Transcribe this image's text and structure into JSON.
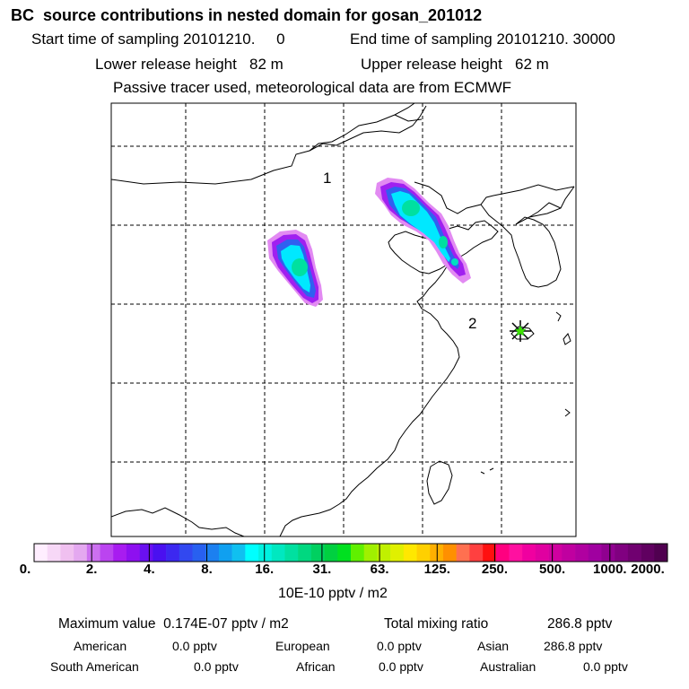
{
  "header": {
    "title": "BC  source contributions in nested domain for gosan_201012",
    "start": "Start time of sampling 20101210.     0",
    "end": "End time of sampling 20101210. 30000",
    "lower": "Lower release height   82 m",
    "upper": "Upper release height   62 m",
    "note": "Passive tracer used, meteorological data are from ECMWF"
  },
  "map": {
    "labels": [
      {
        "text": "2"
      },
      {
        "text": "1"
      }
    ],
    "receptor_marker": "star-asterisk-icon"
  },
  "colorbar": {
    "ticks": [
      "0.",
      "2.",
      "4.",
      "8.",
      "16.",
      "31.",
      "63.",
      "125.",
      "250.",
      "500.",
      "1000.",
      "2000."
    ],
    "units": "10E-10 pptv / m2",
    "colors": [
      "#ffeeff",
      "#f7d8f7",
      "#f0c0f0",
      "#e4a8f0",
      "#cc70f0",
      "#bb44f0",
      "#a81cf0",
      "#8e10f0",
      "#6a10f0",
      "#4a10f0",
      "#3c28f0",
      "#3248f0",
      "#2860f0",
      "#1c80f0",
      "#10a0f0",
      "#10c0f0",
      "#00ffff",
      "#00f2e0",
      "#00e8c0",
      "#00e0a0",
      "#00d880",
      "#00d060",
      "#00d040",
      "#00e020",
      "#60f000",
      "#a0f000",
      "#c0f000",
      "#e0f000",
      "#ffe800",
      "#ffd000",
      "#ffb000",
      "#ff9000",
      "#ff7050",
      "#ff4040",
      "#ff1010",
      "#ff0080",
      "#ff10a0",
      "#f000a0",
      "#e000a0",
      "#d000a0",
      "#c000a0",
      "#b000a0",
      "#a000a0",
      "#900090",
      "#800080",
      "#700070",
      "#600060",
      "#500050"
    ]
  },
  "footer": {
    "max_value": "Maximum value  0.174E-07 pptv / m2",
    "total_mixing": "Total mixing ratio",
    "total_value": "286.8 pptv",
    "regions": [
      {
        "name": "American",
        "value": "0.0 pptv"
      },
      {
        "name": "European",
        "value": "0.0 pptv"
      },
      {
        "name": "Asian",
        "value": "286.8 pptv"
      },
      {
        "name": "South American",
        "value": "0.0 pptv"
      },
      {
        "name": "African",
        "value": "0.0 pptv"
      },
      {
        "name": "Australian",
        "value": "0.0 pptv"
      }
    ]
  }
}
